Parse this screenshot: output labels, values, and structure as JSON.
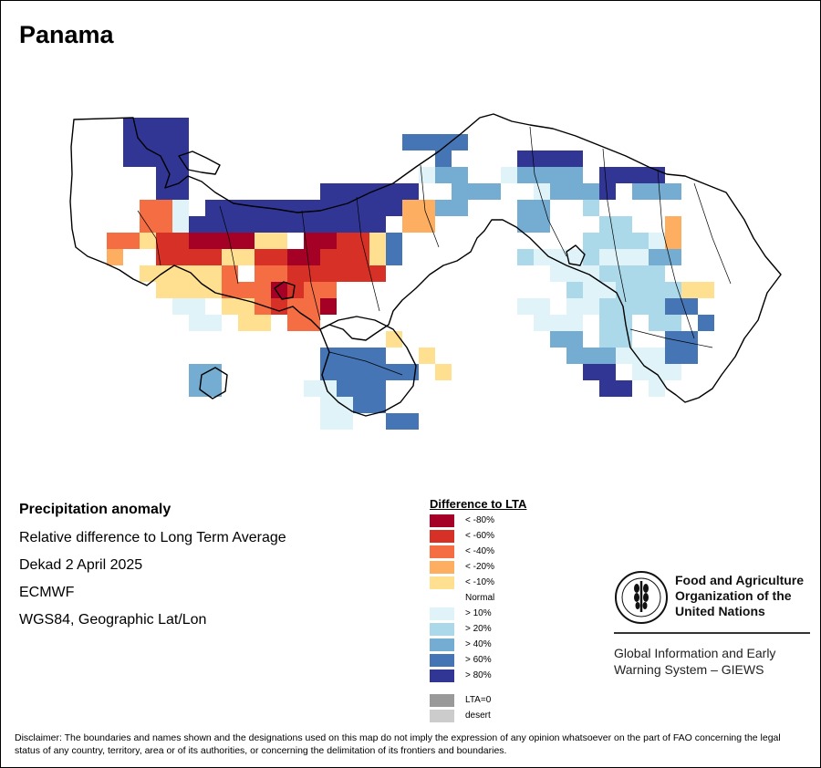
{
  "title": "Panama",
  "info": {
    "heading": "Precipitation anomaly",
    "subtitle": "Relative difference to Long Term Average",
    "period": "Dekad 2 April 2025",
    "source": "ECMWF",
    "projection": "WGS84, Geographic Lat/Lon"
  },
  "legend": {
    "title": "Difference to LTA",
    "items": [
      {
        "label": "< -80%",
        "color": "#a50026"
      },
      {
        "label": "< -60%",
        "color": "#d73027"
      },
      {
        "label": "< -40%",
        "color": "#f46d43"
      },
      {
        "label": "< -20%",
        "color": "#fdae61"
      },
      {
        "label": "< -10%",
        "color": "#fee090"
      },
      {
        "label": "Normal",
        "color": "#ffffff"
      },
      {
        "label": "> 10%",
        "color": "#e0f3f8"
      },
      {
        "label": "> 20%",
        "color": "#abd9e9"
      },
      {
        "label": "> 40%",
        "color": "#74add1"
      },
      {
        "label": "> 60%",
        "color": "#4575b4"
      },
      {
        "label": "> 80%",
        "color": "#313695"
      },
      {
        "label": "LTA=0",
        "color": "#999999"
      },
      {
        "label": "desert",
        "color": "#cccccc"
      }
    ]
  },
  "grid": {
    "origin_class_note": "",
    "rows": [
      "   dddd",
      "   dddd             kkkk",
      "   dddd            ...kl...dddd",
      "     dd           ...ijj  ijjjj.dddd",
      "  ...dd.       dddddd  jjj  ijjjd.jjj.",
      "  ..cci.ddddddddddddeejj   jj .h..  .  ..",
      "  ..ccidddddddddddd.ee     jj ..hh .e ..",
      "  ccfbbaaaagg.aabbfk       ..  hhhhie.",
      "  e..bbbbfgbbaabbbfk       hiiihiiijj",
      "    fffggc.ccbbbbbb .        iiihhhh ..",
      "    .ffggcccabcc  .         ..hiihhhhgg",
      "      ii.ggcbcca ..        ii.iihhhhkk",
      "       ii.gg cc   ..        iii.hh.hh k",
      "        ...   . . .g..       jj.hh .kk",
      "         .     kkkk  g        jjjiiikk",
      "       jj      kkkkkk.f        dd.iii",
      "       jj     iikkk.         .  dd.i",
      "               iikk",
      "               ii  kk"
    ]
  }
}
